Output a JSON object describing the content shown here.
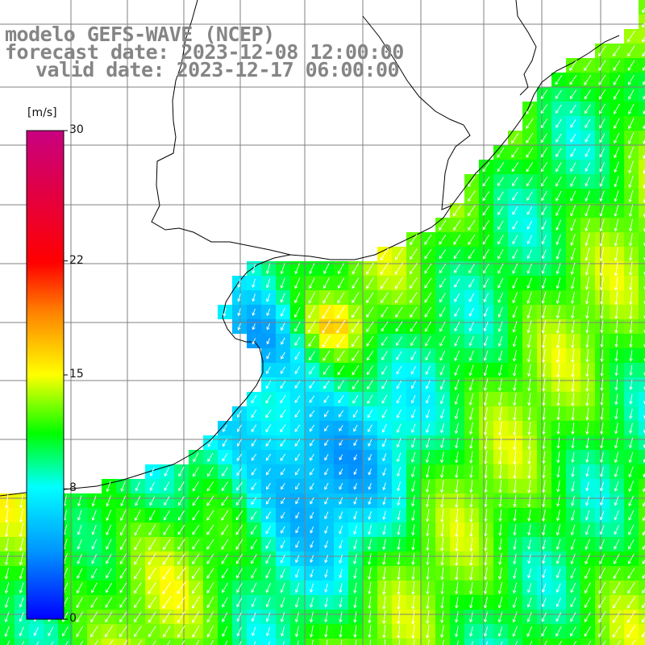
{
  "title": {
    "model": "modelo GEFS-WAVE (NCEP)",
    "forecast": "forecast date: 2023-12-08 12:00:00",
    "valid": "valid date: 2023-12-17 06:00:00"
  },
  "colorbar": {
    "units": "[m/s]",
    "range": [
      0,
      30
    ],
    "ticks": [
      {
        "value": 30,
        "label": "30"
      },
      {
        "value": 22,
        "label": "22"
      },
      {
        "value": 15,
        "label": "15"
      },
      {
        "value": 8,
        "label": "8"
      },
      {
        "value": 0,
        "label": "0"
      }
    ],
    "colors": [
      "#0000ff",
      "#0096ff",
      "#00ffff",
      "#00ff00",
      "#ffff00",
      "#ff8000",
      "#ff0000",
      "#c80080"
    ]
  },
  "map": {
    "variable": "wind speed and direction",
    "ocean_speed_range_ms": [
      3,
      16
    ],
    "land_color": "#ffffff",
    "grid_color": "#808080",
    "coast_color": "#000000",
    "arrow_color": "#ffffff"
  }
}
